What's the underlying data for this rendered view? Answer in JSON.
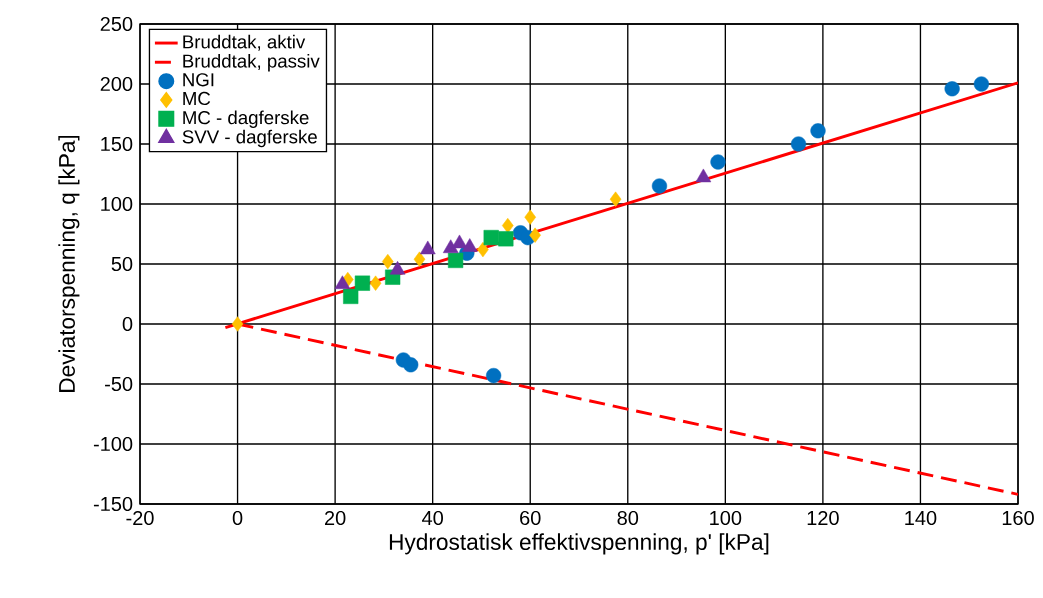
{
  "chart_data": {
    "type": "scatter",
    "xlabel": "Hydrostatisk effektivspenning, p' [kPa]",
    "ylabel": "Deviatorspenning, q [kPa]",
    "xlim": [
      -20,
      160
    ],
    "ylim": [
      -150,
      250
    ],
    "xticks": [
      -20,
      0,
      20,
      40,
      60,
      80,
      100,
      120,
      140,
      160
    ],
    "yticks": [
      -150,
      -100,
      -50,
      0,
      50,
      100,
      150,
      200,
      250
    ],
    "grid": true,
    "legend": "top left",
    "series": [
      {
        "name": "Bruddtak, aktiv",
        "type": "line",
        "color": "#ff0000",
        "line_style": "solid",
        "marker": "none",
        "x": [
          -2.5,
          160
        ],
        "values": [
          -3,
          201
        ]
      },
      {
        "name": "Bruddtak, passiv",
        "type": "line",
        "color": "#ff0000",
        "line_style": "dashed",
        "marker": "none",
        "x": [
          0,
          160
        ],
        "values": [
          0,
          -142
        ]
      },
      {
        "name": "NGI",
        "color": "#0070c0",
        "marker": "circle",
        "x": [
          146.5,
          152.5,
          115,
          119,
          98.5,
          86.5,
          58,
          59.5,
          56,
          47,
          34,
          35.5,
          52.5
        ],
        "values": [
          196,
          200,
          150,
          161,
          135,
          115,
          76,
          72,
          null,
          59,
          -30,
          -34,
          -43
        ]
      },
      {
        "name": "MC",
        "color": "#ffc000",
        "marker": "diamond",
        "x": [
          0,
          22.6,
          28.3,
          30.8,
          37.3,
          50.3,
          55.4,
          60,
          61,
          77.5
        ],
        "values": [
          0,
          37,
          34,
          52,
          54,
          62,
          82,
          89,
          74,
          104
        ]
      },
      {
        "name": "MC - dagferske",
        "color": "#00b050",
        "marker": "square",
        "x": [
          23.2,
          25.6,
          31.8,
          44.7,
          52,
          55
        ],
        "values": [
          23,
          34,
          39,
          53,
          72,
          71
        ]
      },
      {
        "name": "SVV - dagferske",
        "color": "#7030a0",
        "marker": "triangle",
        "x": [
          21.5,
          32.8,
          39,
          43.7,
          45.5,
          47.6,
          95.5
        ],
        "values": [
          33,
          45,
          62,
          63,
          67,
          64,
          122
        ]
      }
    ]
  }
}
